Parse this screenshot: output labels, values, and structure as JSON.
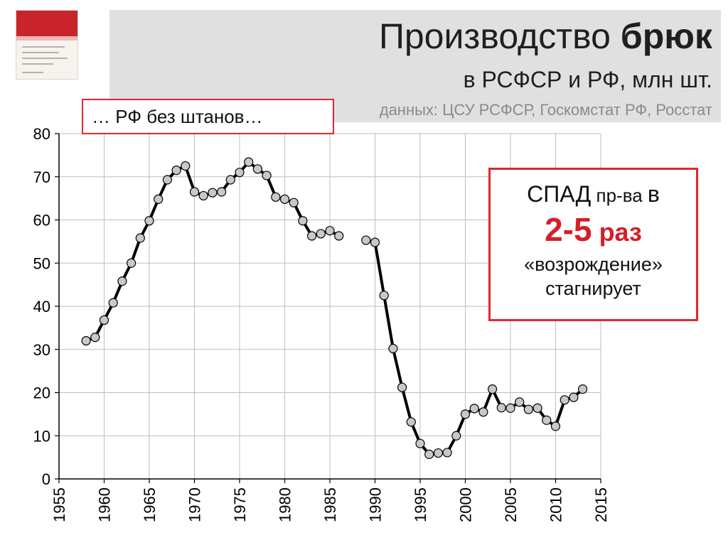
{
  "header": {
    "title_regular": "Производство ",
    "title_bold": "брюк",
    "subtitle": "в РСФСР и РФ, млн шт.",
    "source": "данных: ЦСУ РСФСР, Госкомстат РФ, Росстат"
  },
  "callout_left": {
    "text": "… РФ без штанов…"
  },
  "callout_right": {
    "line1_big": "СПАД",
    "line1_small": " пр-ва ",
    "line1_end": "в",
    "line2_big": "2-5",
    "line2_small": " раз",
    "line3": "«возрождение»",
    "line4": "стагнирует"
  },
  "colors": {
    "accent_red": "#e3262e",
    "line": "#000000",
    "marker_fill": "#c8c8c8"
  },
  "chart_data": {
    "type": "line",
    "xlim": [
      1955,
      2015
    ],
    "ylim": [
      0,
      80
    ],
    "x_ticks": [
      "1955",
      "1960",
      "1965",
      "1970",
      "1975",
      "1980",
      "1985",
      "1990",
      "1995",
      "2000",
      "2005",
      "2010",
      "2015"
    ],
    "y_ticks": [
      "0",
      "10",
      "20",
      "30",
      "40",
      "50",
      "60",
      "70",
      "80"
    ],
    "grid": true,
    "segments": [
      {
        "x": [
          1958,
          1959,
          1960,
          1961,
          1962,
          1963,
          1964,
          1965,
          1966,
          1967,
          1968,
          1969,
          1970,
          1971,
          1972,
          1973,
          1974,
          1975,
          1976,
          1977,
          1978,
          1979,
          1980,
          1981,
          1982,
          1983,
          1984,
          1985,
          1986
        ],
        "y": [
          32,
          32.8,
          36.8,
          40.8,
          45.8,
          50,
          55.8,
          59.8,
          64.8,
          69.3,
          71.5,
          72.5,
          66.5,
          65.6,
          66.3,
          66.5,
          69.3,
          71,
          73.4,
          71.8,
          70.3,
          65.3,
          64.8,
          64,
          59.8,
          56.3,
          56.8,
          57.5,
          56.3
        ]
      },
      {
        "x": [
          1989,
          1990,
          1991,
          1992,
          1993,
          1994,
          1995,
          1996,
          1997,
          1998,
          1999,
          2000,
          2001,
          2002,
          2003,
          2004,
          2005,
          2006,
          2007,
          2008,
          2009,
          2010,
          2011,
          2012,
          2013
        ],
        "y": [
          55.3,
          54.8,
          42.5,
          30.2,
          21.2,
          13.2,
          8.2,
          5.7,
          6,
          6.1,
          10,
          15,
          16.3,
          15.5,
          20.8,
          16.5,
          16.4,
          17.8,
          16.1,
          16.4,
          13.6,
          12.2,
          18.3,
          18.9,
          20.8
        ]
      }
    ]
  }
}
